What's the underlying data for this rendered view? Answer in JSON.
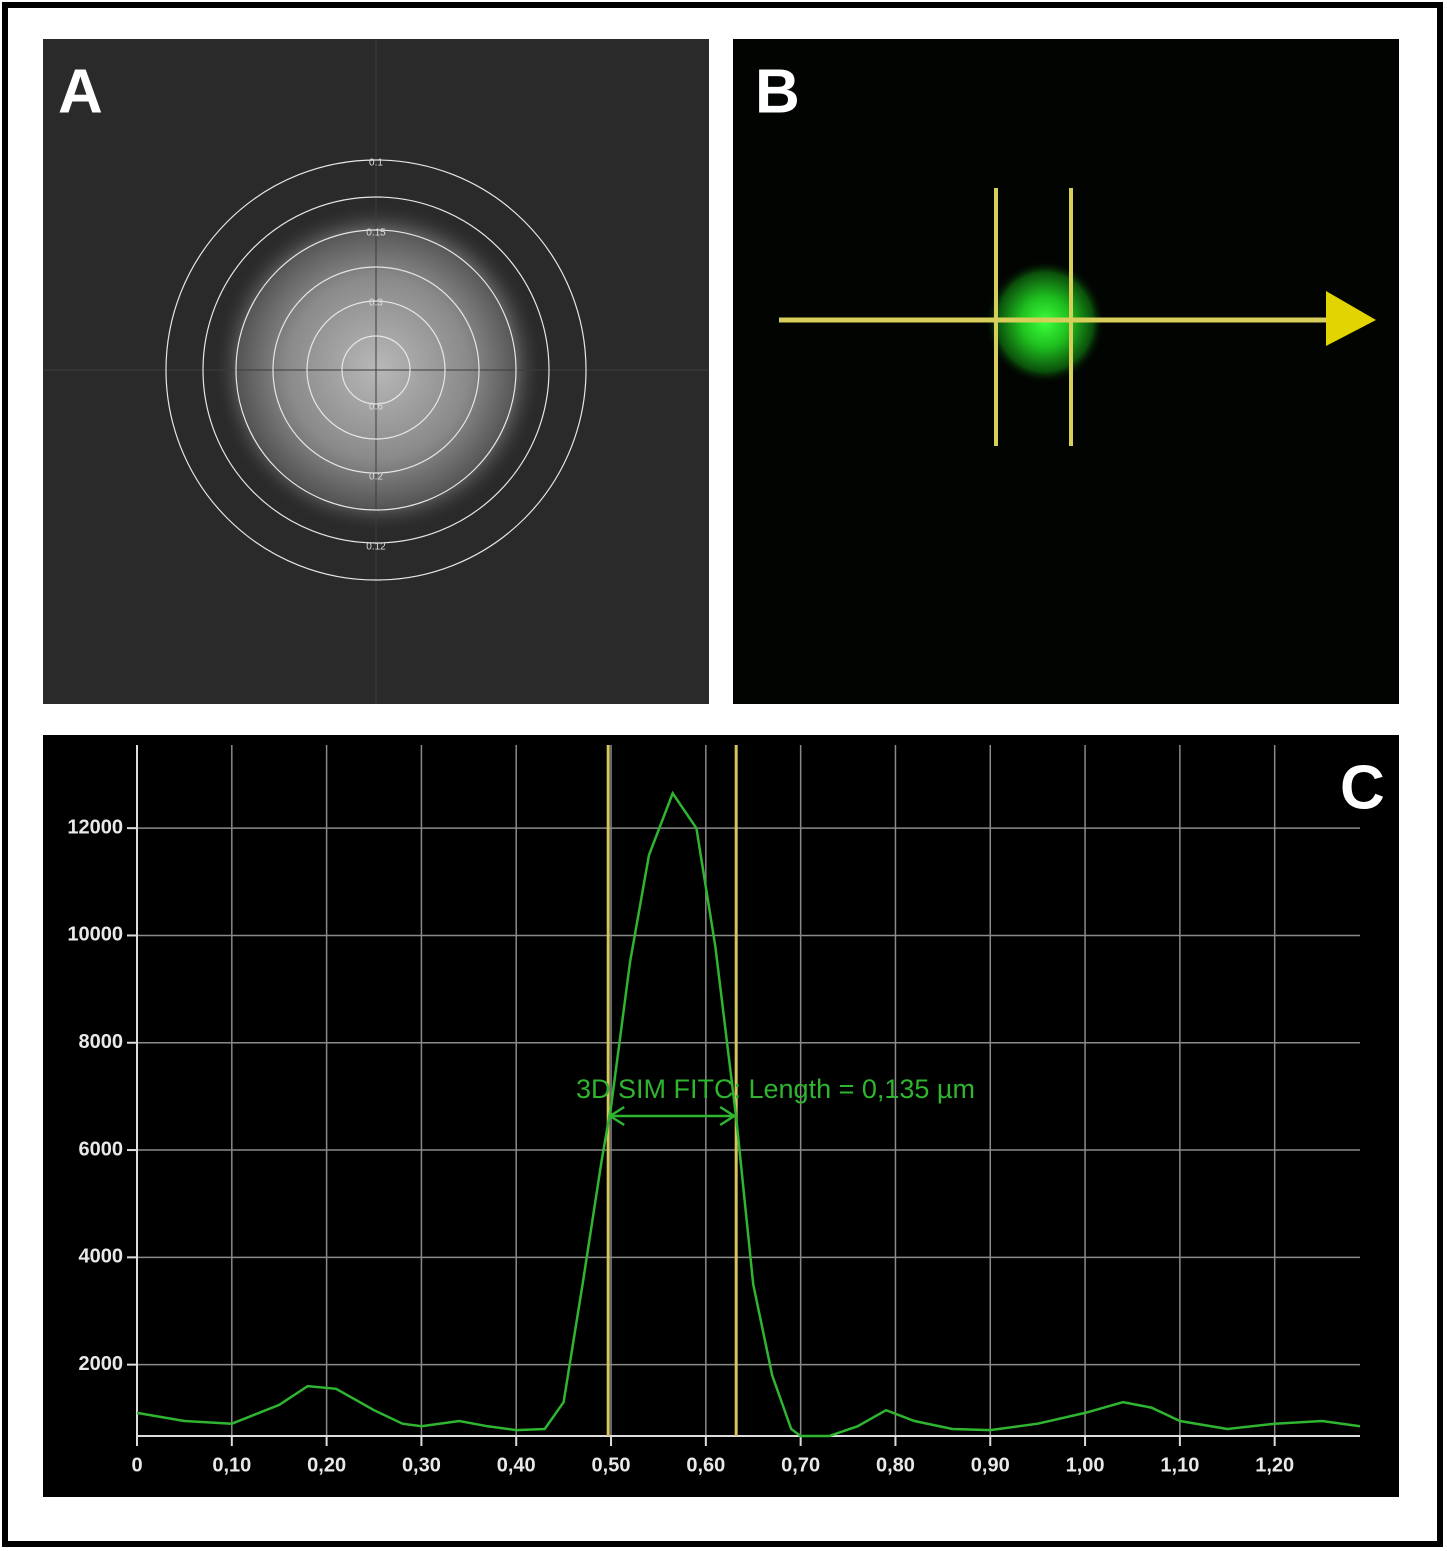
{
  "panels": [
    {
      "label": "A",
      "ring_labels": [
        "0.1",
        "0.15",
        "0.3",
        "0.6",
        "0.2",
        "0.12"
      ]
    },
    {
      "label": "B"
    }
  ],
  "chart_data": {
    "type": "line",
    "label": "C",
    "annotation": "3D SIM FITC: Length = 0,135 µm",
    "x": [
      0,
      0.05,
      0.1,
      0.15,
      0.18,
      0.21,
      0.25,
      0.28,
      0.3,
      0.34,
      0.37,
      0.4,
      0.43,
      0.45,
      0.47,
      0.49,
      0.5,
      0.52,
      0.54,
      0.565,
      0.59,
      0.61,
      0.632,
      0.65,
      0.67,
      0.69,
      0.7,
      0.73,
      0.76,
      0.79,
      0.82,
      0.86,
      0.9,
      0.95,
      1.0,
      1.04,
      1.07,
      1.1,
      1.15,
      1.2,
      1.25,
      1.29
    ],
    "values": [
      1100,
      950,
      900,
      1250,
      1600,
      1550,
      1150,
      900,
      850,
      950,
      850,
      780,
      800,
      1300,
      3500,
      5800,
      6800,
      9500,
      11500,
      12650,
      12000,
      9800,
      6600,
      3500,
      1800,
      800,
      670,
      670,
      850,
      1150,
      950,
      800,
      780,
      900,
      1100,
      1300,
      1200,
      950,
      800,
      900,
      950,
      850
    ],
    "color": "#2fb52f",
    "markers": [
      0.497,
      0.632
    ],
    "marker_color": "#d6c55e",
    "xlim": [
      0,
      1.29
    ],
    "ylim": [
      670,
      13550
    ],
    "xticks": [
      0,
      {
        "value": 0.1,
        "label": "0,10"
      },
      {
        "value": 0.2,
        "label": "0,20"
      },
      {
        "value": 0.3,
        "label": "0,30"
      },
      {
        "value": 0.4,
        "label": "0,40"
      },
      {
        "value": 0.5,
        "label": "0,50"
      },
      {
        "value": 0.6,
        "label": "0,60"
      },
      {
        "value": 0.7,
        "label": "0,70"
      },
      {
        "value": 0.8,
        "label": "0,80"
      },
      {
        "value": 0.9,
        "label": "0,90"
      },
      {
        "value": 1.0,
        "label": "1,00"
      },
      {
        "value": 1.1,
        "label": "1,10"
      },
      {
        "value": 1.2,
        "label": "1,20"
      }
    ],
    "yticks": [
      2000,
      4000,
      6000,
      8000,
      10000,
      12000
    ],
    "grid": true
  }
}
